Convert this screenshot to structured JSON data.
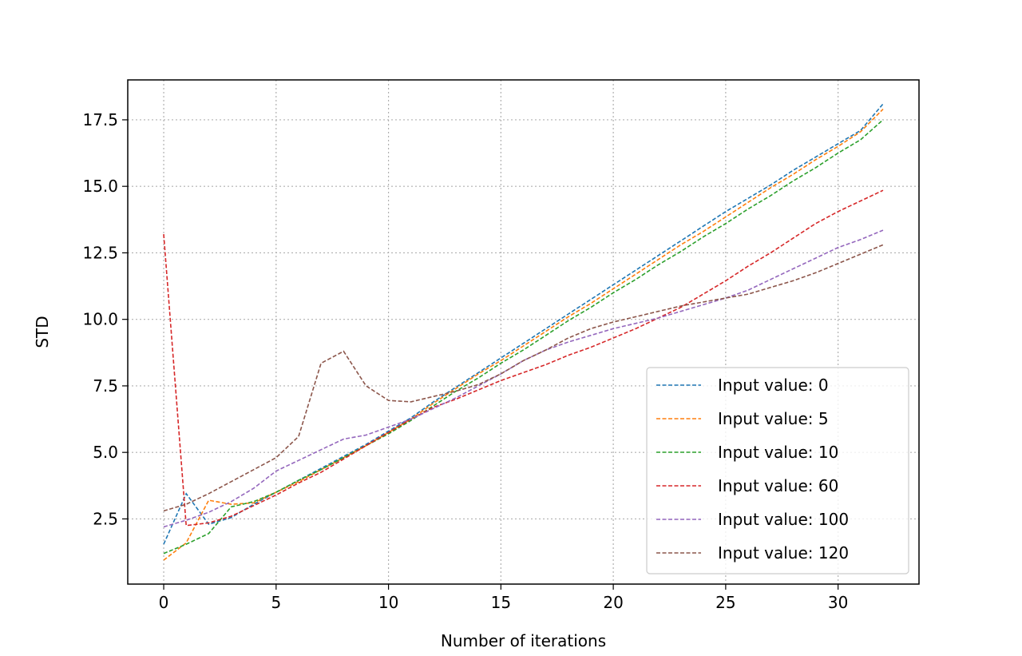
{
  "chart_data": {
    "type": "line",
    "title": "",
    "xlabel": "Number of iterations",
    "ylabel": "STD",
    "xlim": [
      -1.6,
      33.6
    ],
    "ylim": [
      0.05,
      19.0
    ],
    "xticks": [
      0,
      5,
      10,
      15,
      20,
      25,
      30
    ],
    "yticks": [
      2.5,
      5.0,
      7.5,
      10.0,
      12.5,
      15.0,
      17.5
    ],
    "xtick_labels": [
      "0",
      "5",
      "10",
      "15",
      "20",
      "25",
      "30"
    ],
    "ytick_labels": [
      "2.5",
      "5.0",
      "7.5",
      "10.0",
      "12.5",
      "15.0",
      "17.5"
    ],
    "grid": true,
    "legend_position": "lower-right",
    "line_style": "dashed",
    "x": [
      0,
      1,
      2,
      3,
      4,
      5,
      6,
      7,
      8,
      9,
      10,
      11,
      12,
      13,
      14,
      15,
      16,
      17,
      18,
      19,
      20,
      21,
      22,
      23,
      24,
      25,
      26,
      27,
      28,
      29,
      30,
      31,
      32
    ],
    "series": [
      {
        "name": "Input value: 0",
        "color": "#1f77b4",
        "values": [
          1.55,
          3.45,
          2.3,
          2.55,
          3.05,
          3.5,
          3.95,
          4.4,
          4.85,
          5.3,
          5.8,
          6.3,
          6.9,
          7.45,
          8.0,
          8.55,
          9.1,
          9.65,
          10.2,
          10.75,
          11.3,
          11.85,
          12.4,
          12.95,
          13.5,
          14.05,
          14.55,
          15.05,
          15.6,
          16.1,
          16.6,
          17.1,
          18.1
        ]
      },
      {
        "name": "Input value: 5",
        "color": "#ff7f0e",
        "values": [
          0.95,
          1.6,
          3.2,
          3.05,
          3.1,
          3.5,
          3.9,
          4.35,
          4.8,
          5.25,
          5.75,
          6.25,
          6.85,
          7.4,
          7.95,
          8.45,
          9.0,
          9.55,
          10.1,
          10.6,
          11.15,
          11.7,
          12.25,
          12.8,
          13.3,
          13.85,
          14.4,
          14.95,
          15.45,
          16.0,
          16.5,
          17.05,
          17.9
        ]
      },
      {
        "name": "Input value: 10",
        "color": "#2ca02c",
        "values": [
          1.2,
          1.55,
          1.95,
          2.95,
          3.15,
          3.5,
          3.95,
          4.35,
          4.8,
          5.25,
          5.7,
          6.2,
          6.75,
          7.3,
          7.8,
          8.35,
          8.85,
          9.4,
          9.95,
          10.45,
          11.0,
          11.5,
          12.05,
          12.55,
          13.1,
          13.6,
          14.15,
          14.65,
          15.2,
          15.7,
          16.25,
          16.75,
          17.5
        ]
      },
      {
        "name": "Input value: 60",
        "color": "#d62728",
        "values": [
          13.2,
          2.25,
          2.35,
          2.6,
          3.0,
          3.4,
          3.85,
          4.25,
          4.75,
          5.25,
          5.75,
          6.25,
          6.7,
          7.0,
          7.35,
          7.7,
          8.0,
          8.3,
          8.65,
          8.95,
          9.3,
          9.65,
          10.05,
          10.45,
          10.95,
          11.45,
          12.0,
          12.5,
          13.05,
          13.6,
          14.05,
          14.45,
          14.85
        ]
      },
      {
        "name": "Input value: 100",
        "color": "#9467bd",
        "values": [
          2.2,
          2.45,
          2.75,
          3.15,
          3.65,
          4.3,
          4.7,
          5.1,
          5.5,
          5.65,
          5.95,
          6.25,
          6.65,
          7.05,
          7.5,
          7.95,
          8.45,
          8.85,
          9.15,
          9.4,
          9.65,
          9.85,
          10.05,
          10.3,
          10.55,
          10.8,
          11.1,
          11.5,
          11.9,
          12.3,
          12.7,
          13.0,
          13.35
        ]
      },
      {
        "name": "Input value: 120",
        "color": "#8c564b",
        "values": [
          2.8,
          3.05,
          3.45,
          3.9,
          4.35,
          4.8,
          5.6,
          8.35,
          8.8,
          7.5,
          6.95,
          6.9,
          7.1,
          7.3,
          7.55,
          7.95,
          8.45,
          8.85,
          9.3,
          9.65,
          9.9,
          10.1,
          10.3,
          10.5,
          10.65,
          10.8,
          10.95,
          11.2,
          11.45,
          11.75,
          12.1,
          12.45,
          12.8
        ]
      }
    ]
  }
}
